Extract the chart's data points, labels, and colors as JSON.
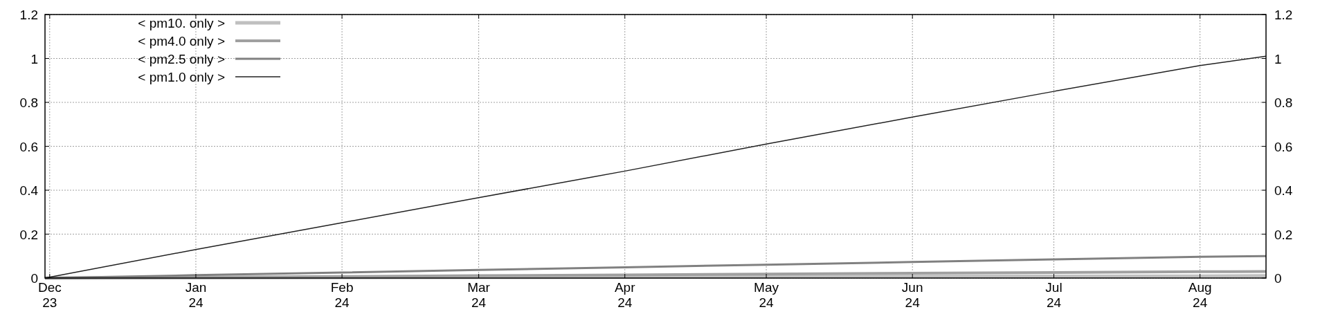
{
  "chart_data": {
    "type": "line",
    "xlim": [
      "2023-11-30",
      "2024-08-15"
    ],
    "xticks": [
      {
        "value": "2023-12-01",
        "label": "Dec\n23"
      },
      {
        "value": "2024-01-01",
        "label": "Jan\n24"
      },
      {
        "value": "2024-02-01",
        "label": "Feb\n24"
      },
      {
        "value": "2024-03-01",
        "label": "Mar\n24"
      },
      {
        "value": "2024-04-01",
        "label": "Apr\n24"
      },
      {
        "value": "2024-05-01",
        "label": "May\n24"
      },
      {
        "value": "2024-06-01",
        "label": "Jun\n24"
      },
      {
        "value": "2024-07-01",
        "label": "Jul\n24"
      },
      {
        "value": "2024-08-01",
        "label": "Aug\n24"
      }
    ],
    "ylim": [
      0,
      1.2
    ],
    "yticks": [
      0,
      0.2,
      0.4,
      0.6,
      0.8,
      1,
      1.2
    ],
    "y2lim": [
      0,
      1.2
    ],
    "y2ticks": [
      0,
      0.2,
      0.4,
      0.6,
      0.8,
      1,
      1.2
    ],
    "grid": true,
    "legend": "top left",
    "x": [
      "2023-11-30",
      "2024-01-01",
      "2024-02-01",
      "2024-03-01",
      "2024-04-01",
      "2024-05-01",
      "2024-06-01",
      "2024-07-01",
      "2024-08-01",
      "2024-08-15"
    ],
    "series": [
      {
        "name": "< pm10. only >",
        "color": "#c0c0c0",
        "values": [
          0,
          0.001,
          0.002,
          0.003,
          0.004,
          0.006,
          0.007,
          0.008,
          0.009,
          0.01
        ]
      },
      {
        "name": "< pm4.0 only >",
        "color": "#a0a0a0",
        "values": [
          0,
          0.004,
          0.007,
          0.011,
          0.014,
          0.018,
          0.022,
          0.025,
          0.029,
          0.03
        ]
      },
      {
        "name": "< pm2.5 only >",
        "color": "#808080",
        "values": [
          0,
          0.013,
          0.025,
          0.037,
          0.049,
          0.061,
          0.073,
          0.085,
          0.097,
          0.1
        ]
      },
      {
        "name": "< pm1.0 only >",
        "color": "#202020",
        "values": [
          0,
          0.13,
          0.252,
          0.366,
          0.487,
          0.61,
          0.733,
          0.85,
          0.968,
          1.01
        ]
      }
    ]
  }
}
